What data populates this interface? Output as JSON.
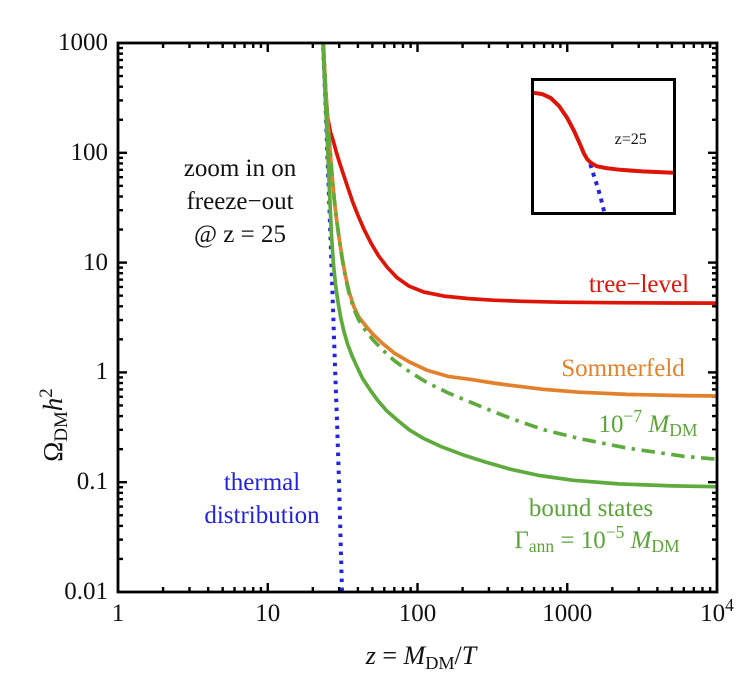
{
  "labels": {
    "annotation": {
      "line1": "zoom in on",
      "line2": "freeze−out",
      "line3": "@ z = 25"
    },
    "thermal": {
      "line1": "thermal",
      "line2": "distribution"
    },
    "tree_level": "tree−level",
    "sommerfeld": "Sommerfeld",
    "dashdot_label": {
      "base": "10",
      "sup": "−7",
      "M": "M",
      "sub": "DM"
    },
    "bound_states": "bound states",
    "gamma_label": {
      "gamma": "Γ",
      "gsub": "ann",
      "eq": " = 10",
      "sup": "−5",
      "M": "M",
      "msub": "DM"
    },
    "y_title": {
      "omega": "Ω",
      "sub": "DM",
      "h": "h",
      "sup": "2"
    },
    "x_title": {
      "z": "z",
      "eq": " = ",
      "M": "M",
      "sub": "DM",
      "slash": "/",
      "T": "T"
    },
    "inset_label": "z=25"
  },
  "colors": {
    "red": "#dd1509",
    "orange": "#e2812b",
    "green": "#5faa3d",
    "blue": "#2424e0",
    "frame": "#000000"
  },
  "chart_data": {
    "type": "line",
    "title": "",
    "xlabel": "z = M_DM/T",
    "ylabel": "Omega_DM h^2",
    "x_log": true,
    "y_log": true,
    "xlim": [
      1,
      10000
    ],
    "ylim": [
      0.01,
      1000
    ],
    "x_tick_labels": [
      {
        "t": "1"
      },
      {
        "t": "10"
      },
      {
        "t": "100"
      },
      {
        "t": "1000"
      },
      {
        "t": "10",
        "sup": "4"
      }
    ],
    "x_tick_values": [
      1,
      10,
      100,
      1000,
      10000
    ],
    "y_tick_labels": [
      "1000",
      "100",
      "10",
      "1",
      "0.1",
      "0.01"
    ],
    "y_tick_values": [
      1000,
      100,
      10,
      1,
      0.1,
      0.01
    ],
    "grid": false,
    "legend_position": "inline-labels",
    "series": [
      {
        "name": "thermal distribution",
        "color": "#2424e0",
        "style": "dotted",
        "points": [
          [
            22.9,
            2800
          ],
          [
            23.4,
            1000
          ],
          [
            24.2,
            320
          ],
          [
            25.0,
            100
          ],
          [
            25.8,
            32
          ],
          [
            26.6,
            10
          ],
          [
            27.4,
            3.2
          ],
          [
            28.2,
            1.0
          ],
          [
            29.1,
            0.32
          ],
          [
            29.9,
            0.1
          ],
          [
            30.6,
            0.032
          ],
          [
            31.3,
            0.01
          ],
          [
            31.8,
            0.0045
          ]
        ]
      },
      {
        "name": "tree-level",
        "color": "#dd1509",
        "style": "solid",
        "points": [
          [
            22.6,
            3000
          ],
          [
            23.4,
            1050
          ],
          [
            24.2,
            420
          ],
          [
            25.1,
            210
          ],
          [
            26.2,
            155
          ],
          [
            27.3,
            130
          ],
          [
            28.8,
            100
          ],
          [
            30.3,
            80
          ],
          [
            32.2,
            62
          ],
          [
            34.3,
            48
          ],
          [
            36.8,
            36
          ],
          [
            40,
            27
          ],
          [
            44,
            20
          ],
          [
            49,
            15
          ],
          [
            55,
            11.5
          ],
          [
            63,
            9.0
          ],
          [
            73,
            7.3
          ],
          [
            88,
            6.1
          ],
          [
            110,
            5.4
          ],
          [
            150,
            4.95
          ],
          [
            220,
            4.7
          ],
          [
            320,
            4.55
          ],
          [
            500,
            4.44
          ],
          [
            900,
            4.36
          ],
          [
            2000,
            4.31
          ],
          [
            5000,
            4.29
          ],
          [
            10000,
            4.28
          ]
        ]
      },
      {
        "name": "Sommerfeld",
        "color": "#e2812b",
        "style": "solid",
        "points": [
          [
            22.7,
            3000
          ],
          [
            23.5,
            1000
          ],
          [
            24.3,
            400
          ],
          [
            25.2,
            180
          ],
          [
            26.1,
            105
          ],
          [
            26.9,
            62
          ],
          [
            27.8,
            38
          ],
          [
            28.8,
            25
          ],
          [
            30,
            16.5
          ],
          [
            31.4,
            11
          ],
          [
            33,
            7.6
          ],
          [
            35,
            5.4
          ],
          [
            37.5,
            4.0
          ],
          [
            40.5,
            3.2
          ],
          [
            44.6,
            2.7
          ],
          [
            50,
            2.25
          ],
          [
            58,
            1.85
          ],
          [
            70,
            1.5
          ],
          [
            88,
            1.25
          ],
          [
            115,
            1.05
          ],
          [
            160,
            0.92
          ],
          [
            230,
            0.86
          ],
          [
            320,
            0.8
          ],
          [
            460,
            0.75
          ],
          [
            700,
            0.7
          ],
          [
            1200,
            0.66
          ],
          [
            2500,
            0.63
          ],
          [
            6000,
            0.615
          ],
          [
            10000,
            0.61
          ]
        ]
      },
      {
        "name": "bound states Gamma_ann = 10^-7 M_DM",
        "color": "#5faa3d",
        "style": "dashdot",
        "points": [
          [
            23.5,
            1000
          ],
          [
            24.3,
            400
          ],
          [
            25.2,
            180
          ],
          [
            26.1,
            105
          ],
          [
            26.9,
            62
          ],
          [
            27.8,
            38
          ],
          [
            28.8,
            25
          ],
          [
            30,
            16.4
          ],
          [
            31.4,
            10.8
          ],
          [
            33,
            7.4
          ],
          [
            35,
            5.2
          ],
          [
            37.5,
            3.8
          ],
          [
            40.5,
            3.0
          ],
          [
            44.6,
            2.45
          ],
          [
            50,
            2.0
          ],
          [
            58,
            1.62
          ],
          [
            70,
            1.28
          ],
          [
            88,
            1.02
          ],
          [
            115,
            0.81
          ],
          [
            160,
            0.65
          ],
          [
            230,
            0.53
          ],
          [
            320,
            0.44
          ],
          [
            460,
            0.365
          ],
          [
            700,
            0.3
          ],
          [
            1200,
            0.25
          ],
          [
            2500,
            0.205
          ],
          [
            6000,
            0.172
          ],
          [
            10000,
            0.162
          ]
        ]
      },
      {
        "name": "bound states Gamma_ann = 10^-5 M_DM",
        "color": "#5faa3d",
        "style": "solid",
        "points": [
          [
            22.6,
            3000
          ],
          [
            23.4,
            1000
          ],
          [
            24.2,
            330
          ],
          [
            25.1,
            115
          ],
          [
            25.9,
            42
          ],
          [
            26.7,
            17
          ],
          [
            27.5,
            9.5
          ],
          [
            28.4,
            6.2
          ],
          [
            29.5,
            4.3
          ],
          [
            30.8,
            3.1
          ],
          [
            32.3,
            2.35
          ],
          [
            34.2,
            1.8
          ],
          [
            36.5,
            1.42
          ],
          [
            39.5,
            1.12
          ],
          [
            43,
            0.88
          ],
          [
            48,
            0.7
          ],
          [
            54,
            0.56
          ],
          [
            62,
            0.45
          ],
          [
            73,
            0.37
          ],
          [
            88,
            0.3
          ],
          [
            110,
            0.25
          ],
          [
            145,
            0.21
          ],
          [
            200,
            0.178
          ],
          [
            282,
            0.153
          ],
          [
            420,
            0.131
          ],
          [
            650,
            0.115
          ],
          [
            1100,
            0.104
          ],
          [
            2200,
            0.0965
          ],
          [
            5000,
            0.0925
          ],
          [
            10000,
            0.091
          ]
        ]
      }
    ],
    "inset": {
      "description": "zoom on freeze-out at z=25",
      "label": "z=25",
      "red_curve": [
        [
          0,
          0.09
        ],
        [
          0.06,
          0.1
        ],
        [
          0.12,
          0.13
        ],
        [
          0.18,
          0.19
        ],
        [
          0.24,
          0.285
        ],
        [
          0.29,
          0.385
        ],
        [
          0.33,
          0.48
        ],
        [
          0.36,
          0.555
        ],
        [
          0.385,
          0.6
        ],
        [
          0.41,
          0.625
        ],
        [
          0.45,
          0.65
        ],
        [
          0.52,
          0.665
        ],
        [
          0.62,
          0.678
        ],
        [
          0.78,
          0.69
        ],
        [
          1,
          0.7
        ]
      ],
      "blue_curve": [
        [
          0.405,
          0.635
        ],
        [
          0.43,
          0.72
        ],
        [
          0.455,
          0.8
        ],
        [
          0.48,
          0.89
        ],
        [
          0.505,
          1.0
        ]
      ]
    }
  }
}
